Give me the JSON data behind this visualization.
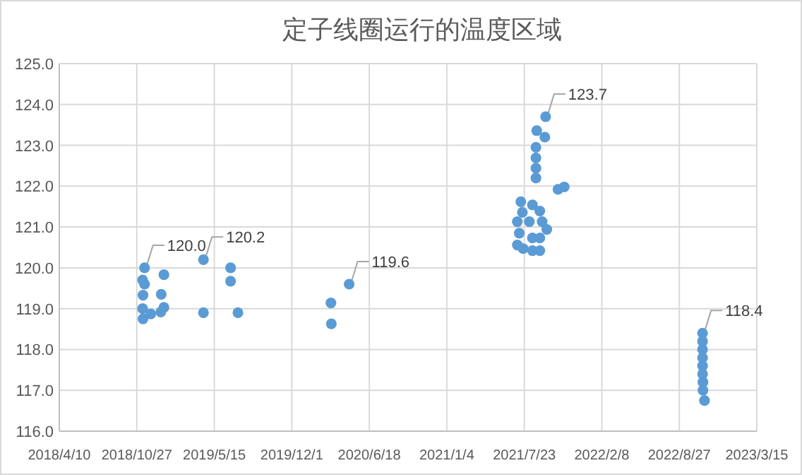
{
  "chart_data": {
    "type": "scatter",
    "title": "定子线圈运行的温度区域",
    "color": "#5b9bd5",
    "marker": "circle",
    "grid": true,
    "x": [
      "2018-11-16",
      "2018-11-11",
      "2018-11-16",
      "2018-11-12",
      "2018-11-11",
      "2018-11-12",
      "2018-12-02",
      "2019-01-05",
      "2018-12-29",
      "2019-01-05",
      "2018-12-28",
      "2019-04-17",
      "2019-04-17",
      "2019-06-26",
      "2019-06-26",
      "2019-07-15",
      "2020-03-11",
      "2020-03-12",
      "2020-04-27",
      "2021-09-16",
      "2021-08-24",
      "2021-09-14",
      "2021-08-22",
      "2021-08-22",
      "2021-08-22",
      "2021-08-22",
      "2021-10-18",
      "2021-11-03",
      "2021-07-14",
      "2021-08-13",
      "2021-07-18",
      "2021-09-01",
      "2021-07-05",
      "2021-08-05",
      "2021-09-07",
      "2021-09-19",
      "2021-07-10",
      "2021-08-13",
      "2021-09-01",
      "2021-07-05",
      "2021-07-20",
      "2021-08-13",
      "2021-09-01",
      "2022-10-26",
      "2022-10-26",
      "2022-10-26",
      "2022-10-26",
      "2022-10-26",
      "2022-10-26",
      "2022-10-27",
      "2022-10-27",
      "2022-10-31"
    ],
    "values": [
      120.0,
      119.7,
      119.6,
      119.33,
      119.0,
      118.75,
      118.87,
      119.83,
      119.35,
      119.03,
      118.92,
      120.2,
      118.9,
      120.0,
      119.67,
      118.9,
      119.14,
      118.63,
      119.6,
      123.7,
      123.36,
      123.2,
      122.95,
      122.69,
      122.44,
      122.2,
      121.92,
      121.98,
      121.62,
      121.54,
      121.36,
      121.39,
      121.13,
      121.13,
      121.13,
      120.94,
      120.85,
      120.73,
      120.73,
      120.56,
      120.47,
      120.42,
      120.42,
      118.4,
      118.2,
      118.0,
      117.8,
      117.6,
      117.4,
      117.2,
      117.0,
      116.75
    ],
    "xlim": [
      "2018-04-10",
      "2023-03-15"
    ],
    "xticks": [
      {
        "value": "2018-04-10",
        "label": "2018/4/10"
      },
      {
        "value": "2018-10-27",
        "label": "2018/10/27"
      },
      {
        "value": "2019-05-15",
        "label": "2019/5/15"
      },
      {
        "value": "2019-12-01",
        "label": "2019/12/1"
      },
      {
        "value": "2020-06-18",
        "label": "2020/6/18"
      },
      {
        "value": "2021-01-04",
        "label": "2021/1/4"
      },
      {
        "value": "2021-07-23",
        "label": "2021/7/23"
      },
      {
        "value": "2022-02-08",
        "label": "2022/2/8"
      },
      {
        "value": "2022-08-27",
        "label": "2022/8/27"
      },
      {
        "value": "2023-03-15",
        "label": "2023/3/15"
      }
    ],
    "ylim": [
      116,
      125
    ],
    "yticks": [
      {
        "value": 116,
        "label": "116.0"
      },
      {
        "value": 117,
        "label": "117.0"
      },
      {
        "value": 118,
        "label": "118.0"
      },
      {
        "value": 119,
        "label": "119.0"
      },
      {
        "value": 120,
        "label": "120.0"
      },
      {
        "value": 121,
        "label": "121.0"
      },
      {
        "value": 122,
        "label": "122.0"
      },
      {
        "value": 123,
        "label": "123.0"
      },
      {
        "value": 124,
        "label": "124.0"
      },
      {
        "value": 125,
        "label": "125.0"
      }
    ],
    "annotations": [
      {
        "text": "120.0",
        "x": "2018-11-16",
        "y": 120.0
      },
      {
        "text": "120.2",
        "x": "2019-04-17",
        "y": 120.2
      },
      {
        "text": "119.6",
        "x": "2020-04-27",
        "y": 119.6
      },
      {
        "text": "123.7",
        "x": "2021-09-16",
        "y": 123.7
      },
      {
        "text": "118.4",
        "x": "2022-10-26",
        "y": 118.4
      }
    ]
  }
}
